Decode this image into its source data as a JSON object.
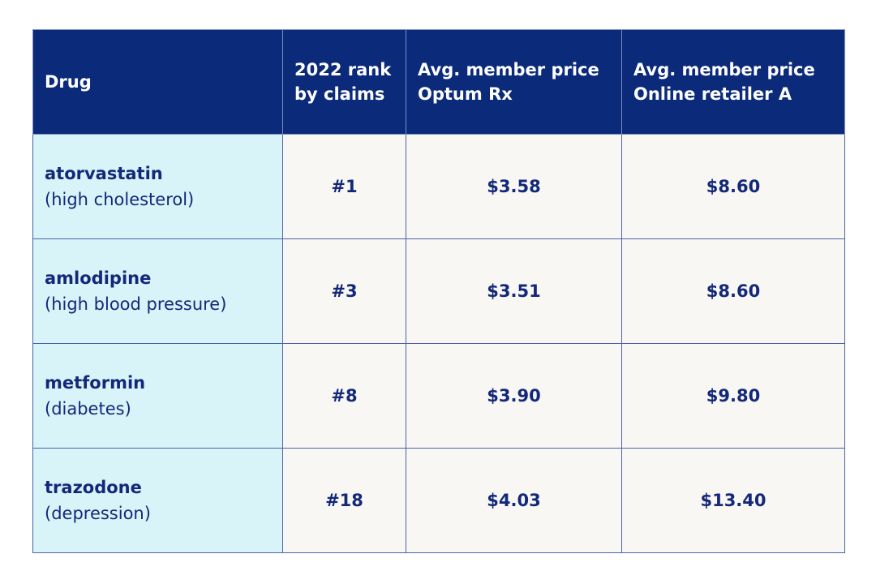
{
  "table": {
    "header": [
      "Drug",
      "2022 rank\nby claims",
      "Avg. member price\nOptum Rx",
      "Avg. member price\nOnline retailer A"
    ],
    "rows": [
      [
        {
          "name": "atorvastatin",
          "condition": "(high cholesterol)"
        },
        "#1",
        "$3.58",
        "$8.60"
      ],
      [
        {
          "name": "amlodipine",
          "condition": "(high blood pressure)"
        },
        "#3",
        "$3.51",
        "$8.60"
      ],
      [
        {
          "name": "metformin",
          "condition": "(diabetes)"
        },
        "#8",
        "$3.90",
        "$9.80"
      ],
      [
        {
          "name": "trazodone",
          "condition": "(depression)"
        },
        "#18",
        "$4.03",
        "$13.40"
      ]
    ]
  }
}
